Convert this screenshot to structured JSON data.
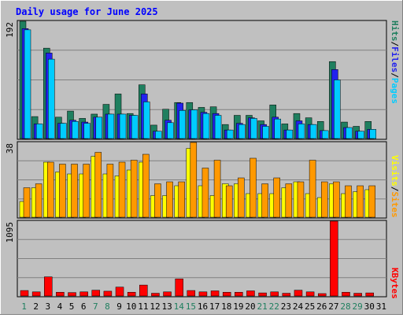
{
  "title": "Daily usage for June 2025",
  "colors": {
    "frame": "#c0c0c0",
    "plot_bg": "#c0c0c0",
    "grid": "#808080",
    "title": "#0000ff",
    "hits": "#1f7f5f",
    "files": "#2222ee",
    "pages": "#00ccff",
    "visits": "#ffff00",
    "sites": "#ff9900",
    "kbytes": "#ff0000",
    "day_default": "#0000ff",
    "day_weekend": "#1f7f5f"
  },
  "legend": {
    "top": [
      {
        "text": "Hits",
        "color": "#1f7f5f"
      },
      {
        "text": "/",
        "color": "#000000"
      },
      {
        "text": "Files",
        "color": "#2222ee"
      },
      {
        "text": "/",
        "color": "#000000"
      },
      {
        "text": "Pages",
        "color": "#00ccff"
      }
    ],
    "middle": [
      {
        "text": "Visits",
        "color": "#ffff00"
      },
      {
        "text": "/",
        "color": "#000000"
      },
      {
        "text": "Sites",
        "color": "#ff9900"
      }
    ],
    "bottom": [
      {
        "text": "KBytes",
        "color": "#ff0000"
      }
    ]
  },
  "chart_data": [
    {
      "type": "bar",
      "panel": "hits-files-pages",
      "ymax_label": "192",
      "ylim": [
        0,
        192
      ],
      "categories": [
        "1",
        "2",
        "3",
        "4",
        "5",
        "6",
        "7",
        "8",
        "9",
        "10",
        "11",
        "12",
        "13",
        "14",
        "15",
        "16",
        "17",
        "18",
        "19",
        "20",
        "21",
        "22",
        "23",
        "24",
        "25",
        "26",
        "27",
        "28",
        "29",
        "30",
        "31"
      ],
      "series": [
        {
          "name": "Hits",
          "values": [
            192,
            36,
            148,
            35,
            45,
            33,
            40,
            56,
            73,
            41,
            88,
            22,
            48,
            59,
            59,
            51,
            52,
            23,
            38,
            38,
            29,
            55,
            24,
            41,
            34,
            28,
            126,
            27,
            20,
            28,
            0
          ]
        },
        {
          "name": "Files",
          "values": [
            180,
            24,
            140,
            25,
            30,
            27,
            35,
            40,
            40,
            38,
            73,
            12,
            30,
            58,
            47,
            43,
            41,
            14,
            25,
            34,
            23,
            35,
            14,
            29,
            23,
            13,
            113,
            18,
            12,
            15,
            0
          ]
        },
        {
          "name": "Pages",
          "values": [
            178,
            24,
            130,
            25,
            28,
            25,
            35,
            40,
            40,
            38,
            60,
            12,
            26,
            46,
            47,
            41,
            38,
            14,
            23,
            33,
            20,
            32,
            14,
            24,
            23,
            13,
            96,
            18,
            12,
            15,
            0
          ]
        }
      ]
    },
    {
      "type": "bar",
      "panel": "visits-sites",
      "ymax_label": "38",
      "ylim": [
        0,
        38
      ],
      "categories": [
        "1",
        "2",
        "3",
        "4",
        "5",
        "6",
        "7",
        "8",
        "9",
        "10",
        "11",
        "12",
        "13",
        "14",
        "15",
        "16",
        "17",
        "18",
        "19",
        "20",
        "21",
        "22",
        "23",
        "24",
        "25",
        "26",
        "27",
        "28",
        "29",
        "30",
        "31"
      ],
      "series": [
        {
          "name": "Visits",
          "values": [
            8,
            15,
            28,
            23,
            22,
            22,
            31,
            22,
            21,
            24,
            28,
            11,
            11,
            16,
            35,
            16,
            11,
            17,
            17,
            12,
            12,
            12,
            15,
            18,
            12,
            10,
            17,
            12,
            13,
            14,
            0
          ]
        },
        {
          "name": "Sites",
          "values": [
            15,
            17,
            28,
            27,
            27,
            27,
            33,
            27,
            28,
            29,
            32,
            17,
            18,
            18,
            38,
            25,
            29,
            16,
            20,
            30,
            17,
            20,
            17,
            18,
            29,
            18,
            18,
            16,
            16,
            16,
            0
          ]
        }
      ]
    },
    {
      "type": "bar",
      "panel": "kbytes",
      "ymax_label": "1095",
      "ylim": [
        0,
        1095
      ],
      "categories": [
        "1",
        "2",
        "3",
        "4",
        "5",
        "6",
        "7",
        "8",
        "9",
        "10",
        "11",
        "12",
        "13",
        "14",
        "15",
        "16",
        "17",
        "18",
        "19",
        "20",
        "21",
        "22",
        "23",
        "24",
        "25",
        "26",
        "27",
        "28",
        "29",
        "30",
        "31"
      ],
      "series": [
        {
          "name": "KBytes",
          "values": [
            80,
            60,
            280,
            55,
            50,
            60,
            85,
            70,
            130,
            55,
            160,
            40,
            60,
            250,
            80,
            60,
            75,
            55,
            55,
            75,
            45,
            60,
            40,
            85,
            60,
            35,
            1095,
            55,
            40,
            45,
            0
          ]
        }
      ]
    }
  ],
  "weekend_days": [
    "1",
    "7",
    "8",
    "14",
    "15",
    "21",
    "22",
    "28",
    "29"
  ]
}
